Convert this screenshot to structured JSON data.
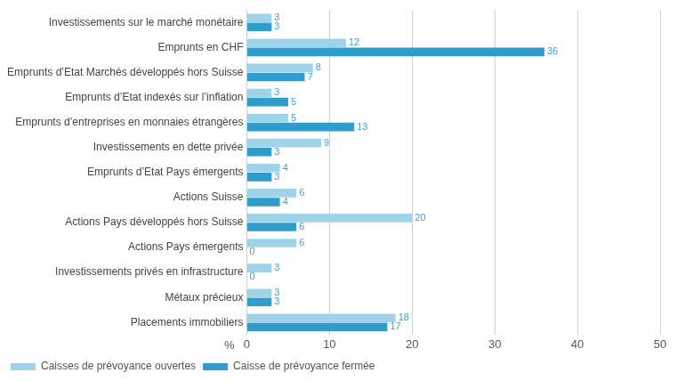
{
  "chart_data": {
    "type": "bar",
    "orientation": "horizontal",
    "categories": [
      "Investissements sur le marché monétaire",
      "Emprunts en CHF",
      "Emprunts d’Etat Marchés développés hors Suisse",
      "Emprunts d’Etat indexés sur l’inflation",
      "Emprunts d’entreprises en monnaies étrangères",
      "Investissements en dette privée",
      "Emprunts d’Etat Pays émergents",
      "Actions Suisse",
      "Actions Pays développés hors Suisse",
      "Actions Pays émergents",
      "Investissements privés en infrastructure",
      "Métaux précieux",
      "Placements immobiliers"
    ],
    "series": [
      {
        "name": "Caisses de prévoyance ouvertes",
        "color": "#9fd4e8",
        "values": [
          3,
          12,
          8,
          3,
          5,
          9,
          4,
          6,
          20,
          6,
          3,
          3,
          18
        ]
      },
      {
        "name": "Caisse de prévoyance fermée",
        "color": "#2f9ccb",
        "values": [
          3,
          36,
          7,
          5,
          13,
          3,
          3,
          4,
          6,
          0,
          0,
          3,
          17
        ]
      }
    ],
    "xlabel": "%",
    "xlim": [
      0,
      50
    ],
    "xticks": [
      0,
      10,
      20,
      30,
      40,
      50
    ],
    "grid": true,
    "legend": "bottom",
    "data_labels": true
  }
}
